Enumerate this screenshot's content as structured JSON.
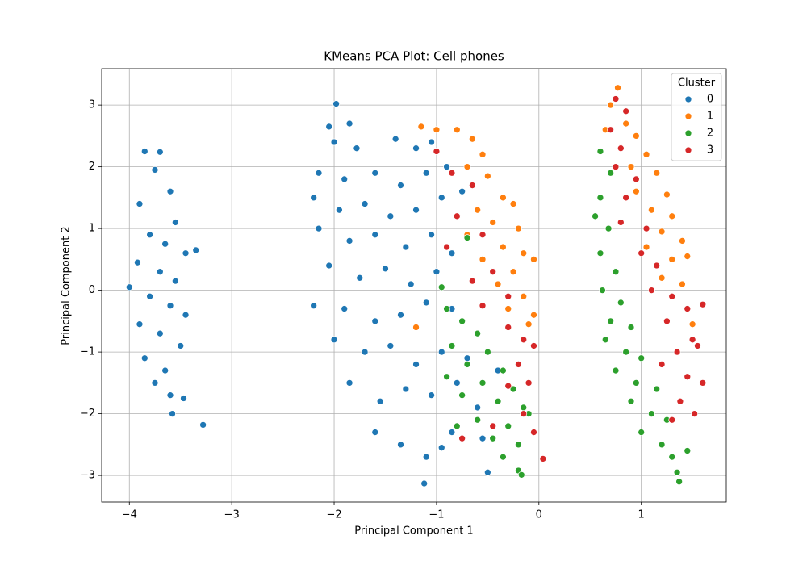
{
  "chart_data": {
    "type": "scatter",
    "title": "KMeans PCA Plot: Cell phones",
    "x_label": "Principal Component 1",
    "y_label": "Principal Component 2",
    "legend_title": "Cluster",
    "legend_position": "upper right",
    "grid": true,
    "xlim": [
      -4.27,
      1.83
    ],
    "ylim": [
      -3.43,
      3.59
    ],
    "xticks": [
      {
        "value": -4,
        "label": "−4"
      },
      {
        "value": -3,
        "label": "−3"
      },
      {
        "value": -2,
        "label": "−2"
      },
      {
        "value": -1,
        "label": "−1"
      },
      0,
      1
    ],
    "yticks": [
      {
        "value": -3,
        "label": "−3"
      },
      {
        "value": -2,
        "label": "−2"
      },
      {
        "value": -1,
        "label": "−1"
      },
      0,
      1,
      2,
      3
    ],
    "series": [
      {
        "name": "0",
        "color": "#1f77b4",
        "x": [
          -3.85,
          -3.7,
          -3.75,
          -3.6,
          -3.9,
          -3.55,
          -3.8,
          -3.65,
          -3.45,
          -3.92,
          -3.7,
          -3.55,
          -4.0,
          -3.8,
          -3.6,
          -3.45,
          -3.9,
          -3.7,
          -3.5,
          -3.85,
          -3.65,
          -3.75,
          -3.6,
          -3.58,
          -3.28,
          -3.47,
          -3.35,
          -1.98,
          -2.05,
          -1.85,
          -2.0,
          -1.78,
          -1.4,
          -1.2,
          -1.05,
          -2.15,
          -1.9,
          -1.6,
          -1.35,
          -1.1,
          -0.9,
          -2.2,
          -1.95,
          -1.7,
          -1.45,
          -1.2,
          -0.95,
          -0.75,
          -2.15,
          -1.85,
          -1.6,
          -1.3,
          -1.05,
          -0.85,
          -2.05,
          -1.75,
          -1.5,
          -1.25,
          -1.0,
          -2.2,
          -1.9,
          -1.6,
          -1.35,
          -1.1,
          -0.85,
          -2.0,
          -1.7,
          -1.45,
          -1.2,
          -0.95,
          -0.7,
          -1.85,
          -1.55,
          -1.3,
          -1.05,
          -0.8,
          -1.6,
          -1.35,
          -1.1,
          -0.85,
          -1.12,
          -0.55,
          -0.5,
          -0.95,
          -0.6,
          -0.4
        ],
        "values": [
          2.25,
          2.24,
          1.95,
          1.6,
          1.4,
          1.1,
          0.9,
          0.75,
          0.6,
          0.45,
          0.3,
          0.15,
          0.05,
          -0.1,
          -0.25,
          -0.4,
          -0.55,
          -0.7,
          -0.9,
          -1.1,
          -1.3,
          -1.5,
          -1.7,
          -2.0,
          -2.18,
          -1.75,
          0.65,
          3.02,
          2.65,
          2.7,
          2.4,
          2.3,
          2.45,
          2.3,
          2.4,
          1.9,
          1.8,
          1.9,
          1.7,
          1.9,
          2.0,
          1.5,
          1.3,
          1.4,
          1.2,
          1.3,
          1.5,
          1.6,
          1.0,
          0.8,
          0.9,
          0.7,
          0.9,
          0.6,
          0.4,
          0.2,
          0.35,
          0.1,
          0.3,
          -0.25,
          -0.3,
          -0.5,
          -0.4,
          -0.2,
          -0.3,
          -0.8,
          -1.0,
          -0.9,
          -1.2,
          -1.0,
          -1.1,
          -1.5,
          -1.8,
          -1.6,
          -1.7,
          -1.5,
          -2.3,
          -2.5,
          -2.7,
          -2.3,
          -3.13,
          -2.4,
          -2.95,
          -2.55,
          -1.9,
          -1.3
        ]
      },
      {
        "name": "1",
        "color": "#ff7f0e",
        "x": [
          -1.15,
          -1.0,
          -0.8,
          -0.65,
          -0.55,
          -0.7,
          -0.5,
          -0.35,
          -0.25,
          -0.6,
          -0.45,
          -0.2,
          -0.7,
          -0.35,
          -0.15,
          -0.55,
          -0.25,
          -0.05,
          -0.4,
          -0.15,
          -0.05,
          -0.3,
          -1.2,
          -0.1,
          0.77,
          0.7,
          0.85,
          0.65,
          0.95,
          0.8,
          1.05,
          0.9,
          1.15,
          1.25,
          0.95,
          1.1,
          1.3,
          1.2,
          1.4,
          1.05,
          1.3,
          1.45,
          1.2,
          1.4,
          1.5
        ],
        "values": [
          2.65,
          2.6,
          2.6,
          2.45,
          2.2,
          2.0,
          1.85,
          1.5,
          1.4,
          1.3,
          1.1,
          1.0,
          0.9,
          0.7,
          0.6,
          0.5,
          0.3,
          0.5,
          0.1,
          -0.1,
          -0.4,
          -0.3,
          -0.6,
          -0.55,
          3.28,
          3.0,
          2.7,
          2.6,
          2.5,
          2.3,
          2.2,
          2.0,
          1.9,
          1.55,
          1.6,
          1.3,
          1.2,
          0.95,
          0.8,
          0.7,
          0.5,
          0.55,
          0.2,
          0.1,
          -0.55
        ]
      },
      {
        "name": "2",
        "color": "#2ca02c",
        "x": [
          -0.9,
          -0.75,
          -0.6,
          -0.85,
          -0.5,
          -0.7,
          -0.35,
          -0.9,
          -0.55,
          -0.25,
          -0.75,
          -0.4,
          -0.15,
          -0.6,
          -0.3,
          -0.1,
          -0.45,
          -0.2,
          -0.35,
          -0.2,
          -0.17,
          -0.8,
          -0.7,
          -0.95,
          0.6,
          0.7,
          0.6,
          0.55,
          0.68,
          0.6,
          0.75,
          0.62,
          0.8,
          0.7,
          0.9,
          0.65,
          0.85,
          1.0,
          0.75,
          0.95,
          1.15,
          0.9,
          1.1,
          1.25,
          1.0,
          1.2,
          1.3,
          1.35,
          1.37,
          1.45
        ],
        "values": [
          -0.3,
          -0.5,
          -0.7,
          -0.9,
          -1.0,
          -1.2,
          -1.3,
          -1.4,
          -1.5,
          -1.6,
          -1.7,
          -1.8,
          -1.9,
          -2.1,
          -2.2,
          -2.0,
          -2.4,
          -2.5,
          -2.7,
          -2.92,
          -2.99,
          -2.2,
          0.85,
          0.05,
          2.25,
          1.9,
          1.5,
          1.2,
          1.0,
          0.6,
          0.3,
          0.0,
          -0.2,
          -0.5,
          -0.6,
          -0.8,
          -1.0,
          -1.1,
          -1.3,
          -1.5,
          -1.6,
          -1.8,
          -2.0,
          -2.1,
          -2.3,
          -2.5,
          -2.7,
          -2.95,
          -3.1,
          -2.6
        ]
      },
      {
        "name": "3",
        "color": "#d62728",
        "x": [
          -1.0,
          -0.85,
          -0.65,
          -0.8,
          -0.55,
          -0.9,
          -0.45,
          -0.65,
          -0.3,
          -0.55,
          -0.15,
          -0.3,
          -0.05,
          -0.2,
          -0.1,
          -0.3,
          -0.15,
          -0.05,
          0.04,
          -0.75,
          -0.45,
          0.75,
          0.85,
          0.7,
          0.8,
          0.75,
          0.95,
          0.85,
          0.8,
          1.05,
          1.0,
          1.15,
          1.1,
          1.3,
          1.45,
          1.6,
          1.25,
          1.5,
          1.35,
          1.55,
          1.2,
          1.45,
          1.6,
          1.38,
          1.52,
          1.3
        ],
        "values": [
          2.25,
          1.9,
          1.7,
          1.2,
          0.9,
          0.7,
          0.3,
          0.15,
          -0.1,
          -0.25,
          -0.8,
          -0.6,
          -0.9,
          -1.2,
          -1.5,
          -1.55,
          -2.0,
          -2.3,
          -2.73,
          -2.4,
          -2.2,
          3.1,
          2.9,
          2.6,
          2.3,
          2.0,
          1.8,
          1.5,
          1.1,
          1.0,
          0.6,
          0.4,
          0.0,
          -0.1,
          -0.3,
          -0.23,
          -0.5,
          -0.8,
          -1.0,
          -0.9,
          -1.2,
          -1.4,
          -1.5,
          -1.8,
          -2.0,
          -2.1
        ]
      }
    ]
  }
}
